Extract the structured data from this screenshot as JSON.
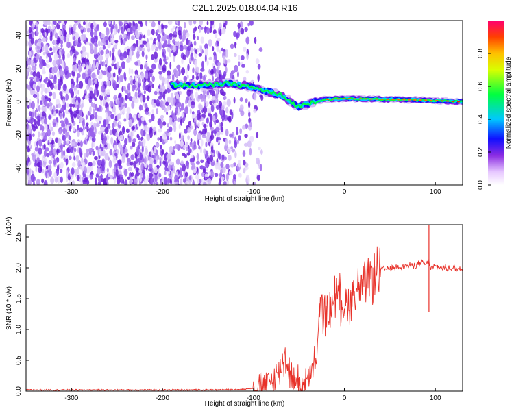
{
  "title": "C2E1.2025.018.04.04.R16",
  "chart_data": [
    {
      "type": "heatmap",
      "title": "C2E1.2025.018.04.04.R16",
      "xlabel": "Height of straight line (km)",
      "ylabel": "Frequency (Hz)",
      "xlim": [
        -350,
        130
      ],
      "ylim": [
        -50,
        49
      ],
      "x_ticks": [
        -300,
        -200,
        -100,
        0,
        100
      ],
      "y_ticks": [
        -40,
        -20,
        0,
        20,
        40
      ],
      "noise_region_x": [
        -350,
        -100
      ],
      "ridge": {
        "description_points": [
          {
            "x": -190,
            "y": 10
          },
          {
            "x": -150,
            "y": 10
          },
          {
            "x": -130,
            "y": 11
          },
          {
            "x": -110,
            "y": 10
          },
          {
            "x": -90,
            "y": 7
          },
          {
            "x": -70,
            "y": 4
          },
          {
            "x": -50,
            "y": -3
          },
          {
            "x": -35,
            "y": 0
          },
          {
            "x": -20,
            "y": 1.5
          },
          {
            "x": 0,
            "y": 2
          },
          {
            "x": 50,
            "y": 1.5
          },
          {
            "x": 90,
            "y": 1
          },
          {
            "x": 130,
            "y": 0
          }
        ]
      },
      "colorbar": {
        "label": "Normalized spectral amplitude",
        "range": [
          0,
          1
        ],
        "ticks": [
          "0.0",
          "0.2",
          "0.4",
          "0.6",
          "0.8"
        ],
        "tick_values": [
          0,
          0.2,
          0.4,
          0.6,
          0.8
        ]
      }
    },
    {
      "type": "line",
      "xlabel": "Height of straight line (km)",
      "ylabel": "SNR (10 * v/v)",
      "scale_label": "(x10⁴)",
      "xlim": [
        -350,
        130
      ],
      "ylim": [
        0,
        2.7
      ],
      "x_ticks": [
        -300,
        -200,
        -100,
        0,
        100
      ],
      "y_ticks": [
        "0.0",
        "0.5",
        "1.0",
        "1.5",
        "2.0",
        "2.5"
      ],
      "y_tick_values": [
        0,
        0.5,
        1.0,
        1.5,
        2.0,
        2.5
      ],
      "series": [
        {
          "color": "#e8322a",
          "points": [
            [
              -350,
              0.02
            ],
            [
              -300,
              0.02
            ],
            [
              -250,
              0.02
            ],
            [
              -200,
              0.02
            ],
            [
              -150,
              0.02
            ],
            [
              -110,
              0.03
            ],
            [
              -100,
              0.05
            ],
            [
              -90,
              0.08
            ],
            [
              -80,
              0.15
            ],
            [
              -72,
              0.3
            ],
            [
              -68,
              0.45
            ],
            [
              -65,
              0.55
            ],
            [
              -62,
              0.4
            ],
            [
              -58,
              0.2
            ],
            [
              -52,
              0.15
            ],
            [
              -45,
              0.12
            ],
            [
              -40,
              0.18
            ],
            [
              -35,
              0.3
            ],
            [
              -30,
              0.6
            ],
            [
              -28,
              1.1
            ],
            [
              -26,
              1.4
            ],
            [
              -22,
              1.3
            ],
            [
              -18,
              1.2
            ],
            [
              -14,
              1.4
            ],
            [
              -10,
              1.6
            ],
            [
              -5,
              1.5
            ],
            [
              0,
              1.4
            ],
            [
              5,
              1.45
            ],
            [
              10,
              1.6
            ],
            [
              15,
              1.65
            ],
            [
              20,
              1.7
            ],
            [
              25,
              1.75
            ],
            [
              30,
              1.85
            ],
            [
              35,
              1.9
            ],
            [
              40,
              1.97
            ],
            [
              50,
              1.99
            ],
            [
              60,
              2.02
            ],
            [
              70,
              2.03
            ],
            [
              80,
              2.05
            ],
            [
              85,
              2.08
            ],
            [
              90,
              2.05
            ],
            [
              93,
              2.1
            ],
            [
              95,
              2.0
            ],
            [
              100,
              2.02
            ],
            [
              110,
              2.0
            ],
            [
              120,
              1.99
            ],
            [
              130,
              1.98
            ]
          ],
          "spikes": [
            {
              "x": 93,
              "high": 2.7,
              "low": 1.28
            }
          ]
        }
      ]
    }
  ]
}
